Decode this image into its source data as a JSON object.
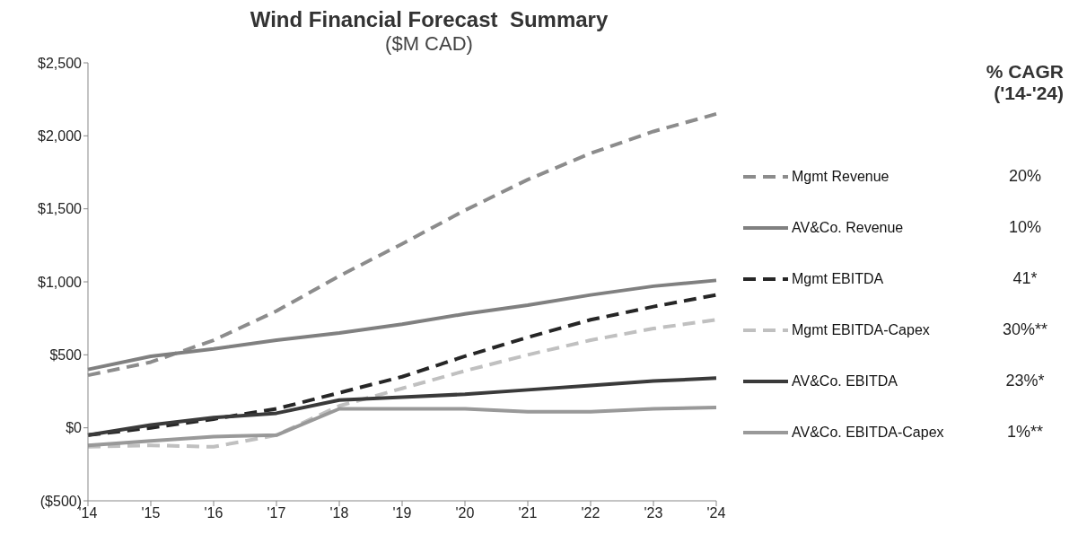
{
  "chart_data": {
    "type": "line",
    "title": "Wind Financial Forecast  Summary",
    "subtitle": "($M CAD)",
    "categories": [
      "'14",
      "'15",
      "'16",
      "'17",
      "'18",
      "'19",
      "'20",
      "'21",
      "'22",
      "'23",
      "'24"
    ],
    "series": [
      {
        "name": "Mgmt Revenue",
        "color": "#8c8c8c",
        "line_style": "dashed",
        "values": [
          360,
          450,
          600,
          800,
          1040,
          1260,
          1490,
          1700,
          1880,
          2030,
          2150
        ]
      },
      {
        "name": "AV&Co. Revenue",
        "color": "#808080",
        "line_style": "solid",
        "values": [
          400,
          490,
          540,
          600,
          650,
          710,
          780,
          840,
          910,
          970,
          1010
        ]
      },
      {
        "name": "Mgmt EBITDA",
        "color": "#262626",
        "line_style": "dashed",
        "values": [
          -50,
          0,
          60,
          130,
          240,
          350,
          490,
          620,
          740,
          830,
          910
        ]
      },
      {
        "name": "Mgmt EBITDA-Capex",
        "color": "#c0c0c0",
        "line_style": "dashed",
        "values": [
          -130,
          -120,
          -130,
          -50,
          150,
          270,
          390,
          500,
          600,
          680,
          740
        ]
      },
      {
        "name": "AV&Co. EBITDA",
        "color": "#3a3a3a",
        "line_style": "solid",
        "values": [
          -50,
          20,
          70,
          100,
          190,
          210,
          230,
          260,
          290,
          320,
          340
        ]
      },
      {
        "name": "AV&Co. EBITDA-Capex",
        "color": "#999999",
        "line_style": "solid",
        "values": [
          -120,
          -90,
          -60,
          -50,
          130,
          130,
          130,
          110,
          110,
          130,
          140
        ]
      }
    ],
    "ylim": [
      -500,
      2500
    ],
    "yticks": [
      {
        "value": -500,
        "label": "($500)"
      },
      {
        "value": 0,
        "label": "$0"
      },
      {
        "value": 500,
        "label": "$500"
      },
      {
        "value": 1000,
        "label": "$1,000"
      },
      {
        "value": 1500,
        "label": "$1,500"
      },
      {
        "value": 2000,
        "label": "$2,000"
      },
      {
        "value": 2500,
        "label": "$2,500"
      }
    ],
    "grid": false,
    "legend": "right",
    "marker": "none",
    "legend_title": "% CAGR\n('14-'24)",
    "annotations": [
      "20%",
      "10%",
      "41*",
      "30%**",
      "23%*",
      "1%**"
    ]
  }
}
